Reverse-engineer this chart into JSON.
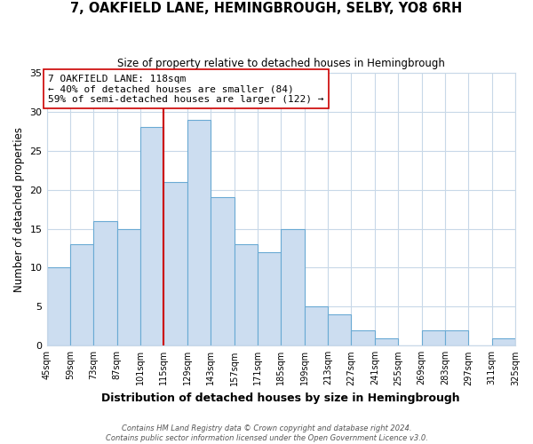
{
  "title": "7, OAKFIELD LANE, HEMINGBROUGH, SELBY, YO8 6RH",
  "subtitle": "Size of property relative to detached houses in Hemingbrough",
  "xlabel": "Distribution of detached houses by size in Hemingbrough",
  "ylabel": "Number of detached properties",
  "bins": [
    45,
    59,
    73,
    87,
    101,
    115,
    129,
    143,
    157,
    171,
    185,
    199,
    213,
    227,
    241,
    255,
    269,
    283,
    297,
    311,
    325
  ],
  "counts": [
    10,
    13,
    16,
    15,
    28,
    21,
    29,
    19,
    13,
    12,
    15,
    5,
    4,
    2,
    1,
    0,
    2,
    2,
    0,
    1
  ],
  "bar_color": "#ccddf0",
  "bar_edge_color": "#6aaad4",
  "vline_x": 115,
  "vline_color": "#cc0000",
  "annotation_text": "7 OAKFIELD LANE: 118sqm\n← 40% of detached houses are smaller (84)\n59% of semi-detached houses are larger (122) →",
  "annotation_box_edgecolor": "#cc0000",
  "annotation_box_facecolor": "#ffffff",
  "ylim": [
    0,
    35
  ],
  "yticks": [
    0,
    5,
    10,
    15,
    20,
    25,
    30,
    35
  ],
  "tick_labels": [
    "45sqm",
    "59sqm",
    "73sqm",
    "87sqm",
    "101sqm",
    "115sqm",
    "129sqm",
    "143sqm",
    "157sqm",
    "171sqm",
    "185sqm",
    "199sqm",
    "213sqm",
    "227sqm",
    "241sqm",
    "255sqm",
    "269sqm",
    "283sqm",
    "297sqm",
    "311sqm",
    "325sqm"
  ],
  "footer_line1": "Contains HM Land Registry data © Crown copyright and database right 2024.",
  "footer_line2": "Contains public sector information licensed under the Open Government Licence v3.0.",
  "background_color": "#ffffff",
  "grid_color": "#c8d8e8"
}
